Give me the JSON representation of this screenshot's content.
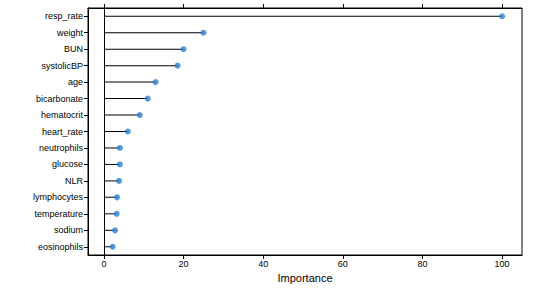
{
  "chart_data": {
    "type": "lollipop",
    "orientation": "horizontal",
    "xlabel": "Importance",
    "categories": [
      "resp_rate",
      "weight",
      "BUN",
      "systolicBP",
      "age",
      "bicarbonate",
      "hematocrit",
      "heart_rate",
      "neutrophils",
      "glucose",
      "NLR",
      "lymphocytes",
      "temperature",
      "sodium",
      "eosinophils"
    ],
    "values": [
      100,
      25,
      20,
      18.5,
      13,
      11,
      9,
      6,
      4,
      4,
      3.8,
      3.3,
      3.2,
      2.8,
      2.2
    ],
    "color": "#2a7fd4",
    "xlim": [
      -4,
      105
    ],
    "xticks": [
      0,
      20,
      40,
      60,
      80,
      100
    ],
    "grid": false
  }
}
